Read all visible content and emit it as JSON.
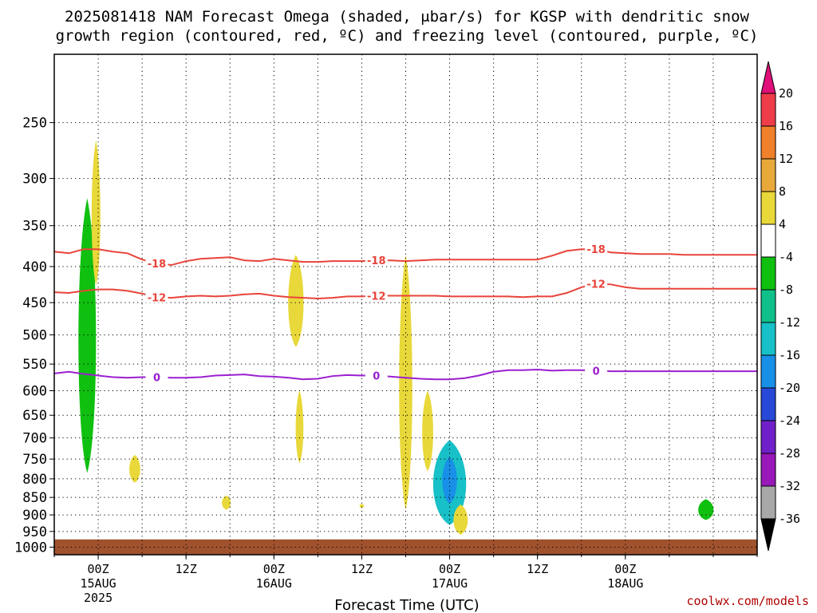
{
  "title_line1": "2025081418 NAM Forecast Omega (shaded, μbar/s) for KGSP with dendritic snow",
  "title_line2": "growth region (contoured, red, ºC) and freezing level (contoured, purple, ºC)",
  "credit": "coolwx.com/models",
  "colors": {
    "dendritic_contour": "#e8443a",
    "freezing_contour": "#9b1fd0",
    "ground": "#a0522d",
    "grid": "#000000"
  },
  "chart_data": {
    "type": "heatmap",
    "xlabel": "Forecast Time (UTC)",
    "x_start": "2025-08-14 18Z",
    "x_end": "2025-08-18 18Z",
    "x_ticks": [
      {
        "label": "00Z",
        "date": "15AUG",
        "year": "2025"
      },
      {
        "label": "12Z",
        "date": "",
        "year": ""
      },
      {
        "label": "00Z",
        "date": "16AUG",
        "year": ""
      },
      {
        "label": "12Z",
        "date": "",
        "year": ""
      },
      {
        "label": "00Z",
        "date": "17AUG",
        "year": ""
      },
      {
        "label": "12Z",
        "date": "",
        "year": ""
      },
      {
        "label": "00Z",
        "date": "18AUG",
        "year": ""
      }
    ],
    "y_axis": "pressure (mb), inverted",
    "y_ticks": [
      250,
      300,
      350,
      400,
      450,
      500,
      550,
      600,
      650,
      700,
      750,
      800,
      850,
      900,
      950,
      1000
    ],
    "ylim": [
      1025,
      200
    ],
    "grid": "dotted",
    "ground_level_mb": 975,
    "colorbar": {
      "tick_labels": [
        "20",
        "16",
        "12",
        "8",
        "4",
        "-4",
        "-8",
        "-12",
        "-16",
        "-20",
        "-24",
        "-28",
        "-32",
        "-36"
      ],
      "colors": [
        "#ee3c48",
        "#f0802a",
        "#e8a83a",
        "#e8d83a",
        "#ffffff",
        "#10c010",
        "#10c08a",
        "#18c0c8",
        "#1890e8",
        "#2848d8",
        "#7020c8",
        "#9818b8",
        "#a8a8a8"
      ],
      "top_color": "#e0107a",
      "bottom_color": "#000000"
    },
    "contours": [
      {
        "label": "-18",
        "color_key": "dendritic_contour",
        "points": [
          [
            0,
            381
          ],
          [
            2,
            383
          ],
          [
            4,
            378
          ],
          [
            6,
            378
          ],
          [
            8,
            381
          ],
          [
            10,
            383
          ],
          [
            12,
            391
          ],
          [
            14,
            396
          ],
          [
            16,
            398
          ],
          [
            18,
            393
          ],
          [
            20,
            390
          ],
          [
            22,
            389
          ],
          [
            24,
            388
          ],
          [
            26,
            392
          ],
          [
            28,
            393
          ],
          [
            30,
            390
          ],
          [
            32,
            392
          ],
          [
            34,
            394
          ],
          [
            36,
            394
          ],
          [
            38,
            393
          ],
          [
            40,
            393
          ],
          [
            42,
            393
          ],
          [
            44,
            392
          ],
          [
            46,
            392
          ],
          [
            48,
            393
          ],
          [
            50,
            392
          ],
          [
            52,
            391
          ],
          [
            54,
            391
          ],
          [
            56,
            391
          ],
          [
            58,
            391
          ],
          [
            60,
            391
          ],
          [
            62,
            391
          ],
          [
            64,
            391
          ],
          [
            66,
            391
          ],
          [
            68,
            386
          ],
          [
            70,
            380
          ],
          [
            72,
            378
          ],
          [
            74,
            378
          ],
          [
            76,
            382
          ],
          [
            78,
            383
          ],
          [
            80,
            384
          ],
          [
            82,
            384
          ],
          [
            84,
            384
          ],
          [
            86,
            385
          ],
          [
            88,
            385
          ],
          [
            90,
            385
          ],
          [
            92,
            385
          ],
          [
            94,
            385
          ],
          [
            96,
            385
          ]
        ]
      },
      {
        "label": "-12",
        "color_key": "dendritic_contour",
        "points": [
          [
            0,
            435
          ],
          [
            2,
            436
          ],
          [
            4,
            433
          ],
          [
            6,
            431
          ],
          [
            8,
            431
          ],
          [
            10,
            433
          ],
          [
            12,
            437
          ],
          [
            14,
            442
          ],
          [
            16,
            443
          ],
          [
            18,
            441
          ],
          [
            20,
            440
          ],
          [
            22,
            441
          ],
          [
            24,
            440
          ],
          [
            26,
            438
          ],
          [
            28,
            437
          ],
          [
            30,
            440
          ],
          [
            32,
            442
          ],
          [
            34,
            443
          ],
          [
            36,
            444
          ],
          [
            38,
            443
          ],
          [
            40,
            441
          ],
          [
            42,
            441
          ],
          [
            44,
            440
          ],
          [
            46,
            440
          ],
          [
            48,
            440
          ],
          [
            50,
            440
          ],
          [
            52,
            440
          ],
          [
            54,
            441
          ],
          [
            56,
            441
          ],
          [
            58,
            441
          ],
          [
            60,
            441
          ],
          [
            62,
            441
          ],
          [
            64,
            442
          ],
          [
            66,
            441
          ],
          [
            68,
            441
          ],
          [
            70,
            436
          ],
          [
            72,
            428
          ],
          [
            74,
            423
          ],
          [
            76,
            424
          ],
          [
            78,
            428
          ],
          [
            80,
            430
          ],
          [
            82,
            430
          ],
          [
            84,
            430
          ],
          [
            86,
            430
          ],
          [
            88,
            430
          ],
          [
            90,
            430
          ],
          [
            92,
            430
          ],
          [
            94,
            430
          ],
          [
            96,
            430
          ]
        ]
      },
      {
        "label": "0",
        "color_key": "freezing_contour",
        "points": [
          [
            0,
            567
          ],
          [
            2,
            564
          ],
          [
            4,
            568
          ],
          [
            6,
            571
          ],
          [
            8,
            574
          ],
          [
            10,
            575
          ],
          [
            12,
            574
          ],
          [
            14,
            574
          ],
          [
            16,
            575
          ],
          [
            18,
            575
          ],
          [
            20,
            574
          ],
          [
            22,
            571
          ],
          [
            24,
            570
          ],
          [
            26,
            569
          ],
          [
            28,
            572
          ],
          [
            30,
            573
          ],
          [
            32,
            575
          ],
          [
            34,
            578
          ],
          [
            36,
            577
          ],
          [
            38,
            572
          ],
          [
            40,
            570
          ],
          [
            42,
            571
          ],
          [
            44,
            571
          ],
          [
            46,
            573
          ],
          [
            48,
            575
          ],
          [
            50,
            577
          ],
          [
            52,
            578
          ],
          [
            54,
            578
          ],
          [
            56,
            576
          ],
          [
            58,
            571
          ],
          [
            60,
            564
          ],
          [
            62,
            561
          ],
          [
            64,
            561
          ],
          [
            66,
            560
          ],
          [
            68,
            562
          ],
          [
            70,
            561
          ],
          [
            72,
            561
          ],
          [
            74,
            562
          ],
          [
            76,
            563
          ],
          [
            78,
            563
          ],
          [
            80,
            563
          ],
          [
            82,
            563
          ],
          [
            84,
            563
          ],
          [
            86,
            563
          ],
          [
            88,
            563
          ],
          [
            90,
            563
          ],
          [
            92,
            563
          ],
          [
            94,
            563
          ],
          [
            96,
            563
          ]
        ]
      }
    ],
    "shaded_regions": [
      {
        "time": -1.5,
        "p_top": 320,
        "p_bottom": 785,
        "width_h": 1.6,
        "value": -6
      },
      {
        "time": -0.3,
        "p_top": 265,
        "p_bottom": 425,
        "width_h": 0.8,
        "value": 5
      },
      {
        "time": 5.0,
        "p_top": 740,
        "p_bottom": 810,
        "width_h": 1.0,
        "value": 5
      },
      {
        "time": 17.5,
        "p_top": 845,
        "p_bottom": 885,
        "width_h": 0.8,
        "value": 5
      },
      {
        "time": 27.0,
        "p_top": 385,
        "p_bottom": 520,
        "width_h": 1.4,
        "value": 6
      },
      {
        "time": 27.5,
        "p_top": 600,
        "p_bottom": 760,
        "width_h": 0.7,
        "value": 5
      },
      {
        "time": 36.0,
        "p_top": 868,
        "p_bottom": 880,
        "width_h": 0.4,
        "value": 5
      },
      {
        "time": 42.0,
        "p_top": 385,
        "p_bottom": 885,
        "width_h": 1.2,
        "value": 7
      },
      {
        "time": 45.0,
        "p_top": 600,
        "p_bottom": 780,
        "width_h": 1.0,
        "value": 6
      },
      {
        "time": 48.0,
        "p_top": 705,
        "p_bottom": 930,
        "width_h": 3.0,
        "value": -12
      },
      {
        "time": 49.5,
        "p_top": 870,
        "p_bottom": 960,
        "width_h": 1.3,
        "value": 7
      },
      {
        "time": 83.0,
        "p_top": 855,
        "p_bottom": 915,
        "width_h": 1.4,
        "value": -6
      }
    ]
  }
}
